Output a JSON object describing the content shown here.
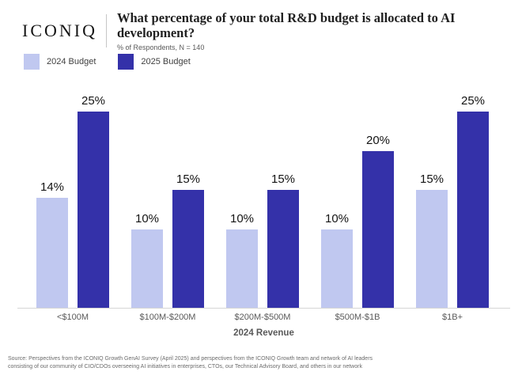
{
  "header": {
    "logo": "ICONIQ",
    "title": "What percentage of your total R&D budget is allocated to AI development?",
    "subtitle": "% of Respondents, N = 140"
  },
  "chart_data": {
    "type": "bar",
    "title": "What percentage of your total R&D budget is allocated to AI development?",
    "subtitle": "% of Respondents, N = 140",
    "categories": [
      "<$100M",
      "$100M-$200M",
      "$200M-$500M",
      "$500M-$1B",
      "$1B+"
    ],
    "series": [
      {
        "name": "2024 Budget",
        "color": "#c0c8f0",
        "values": [
          14,
          10,
          10,
          10,
          15
        ]
      },
      {
        "name": "2025 Budget",
        "color": "#3431a9",
        "values": [
          25,
          15,
          15,
          20,
          25
        ]
      }
    ],
    "value_suffix": "%",
    "xlabel": "2024 Revenue",
    "ylabel": "% of Respondents",
    "ylim": [
      0,
      27
    ],
    "grid": false,
    "data_labels": true,
    "legend_position": "top-left",
    "axis_line_color": "#d6d6d6"
  },
  "footer": {
    "source_line1": "Source: Perspectives from the ICONIQ Growth GenAI Survey (April 2025) and perspectives from the ICONIQ Growth team and network of AI leaders",
    "source_line2": "consisting of our community of CIO/CDOs overseeing AI initiatives in enterprises, CTOs, our Technical Advisory Board, and others in our network"
  }
}
